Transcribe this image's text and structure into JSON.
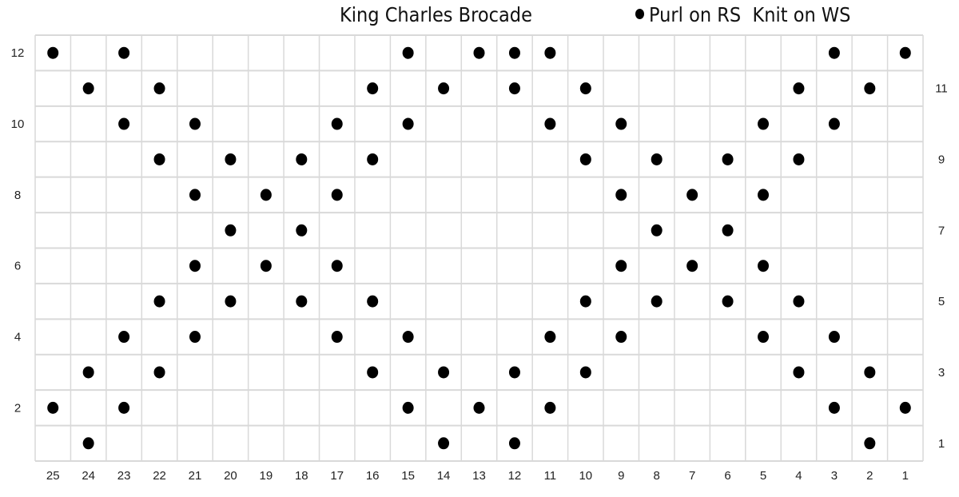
{
  "title": "King Charles Brocade",
  "legend": {
    "symbol": "filled-dot",
    "label": "Purl on RS  Knit on WS"
  },
  "chart_data": {
    "type": "knitting-chart",
    "columns": 25,
    "rows": 12,
    "column_labels_order": "right-to-left",
    "even_row_labels": "left",
    "odd_row_labels": "right",
    "grid": true,
    "colors": {
      "dot": "#000000",
      "grid": "#d9d9d9"
    },
    "purl_stitches": {
      "12": [
        25,
        23,
        15,
        13,
        12,
        11,
        3,
        1
      ],
      "11": [
        24,
        22,
        16,
        14,
        12,
        10,
        4,
        2
      ],
      "10": [
        23,
        21,
        17,
        15,
        11,
        9,
        5,
        3
      ],
      "9": [
        22,
        20,
        18,
        16,
        10,
        8,
        6,
        4
      ],
      "8": [
        21,
        19,
        17,
        9,
        7,
        5
      ],
      "7": [
        20,
        18,
        8,
        6
      ],
      "6": [
        21,
        19,
        17,
        9,
        7,
        5
      ],
      "5": [
        22,
        20,
        18,
        16,
        10,
        8,
        6,
        4
      ],
      "4": [
        23,
        21,
        17,
        15,
        11,
        9,
        5,
        3
      ],
      "3": [
        24,
        22,
        16,
        14,
        12,
        10,
        4,
        2
      ],
      "2": [
        25,
        23,
        15,
        13,
        11,
        3,
        1
      ],
      "1": [
        24,
        14,
        12,
        2
      ]
    }
  }
}
